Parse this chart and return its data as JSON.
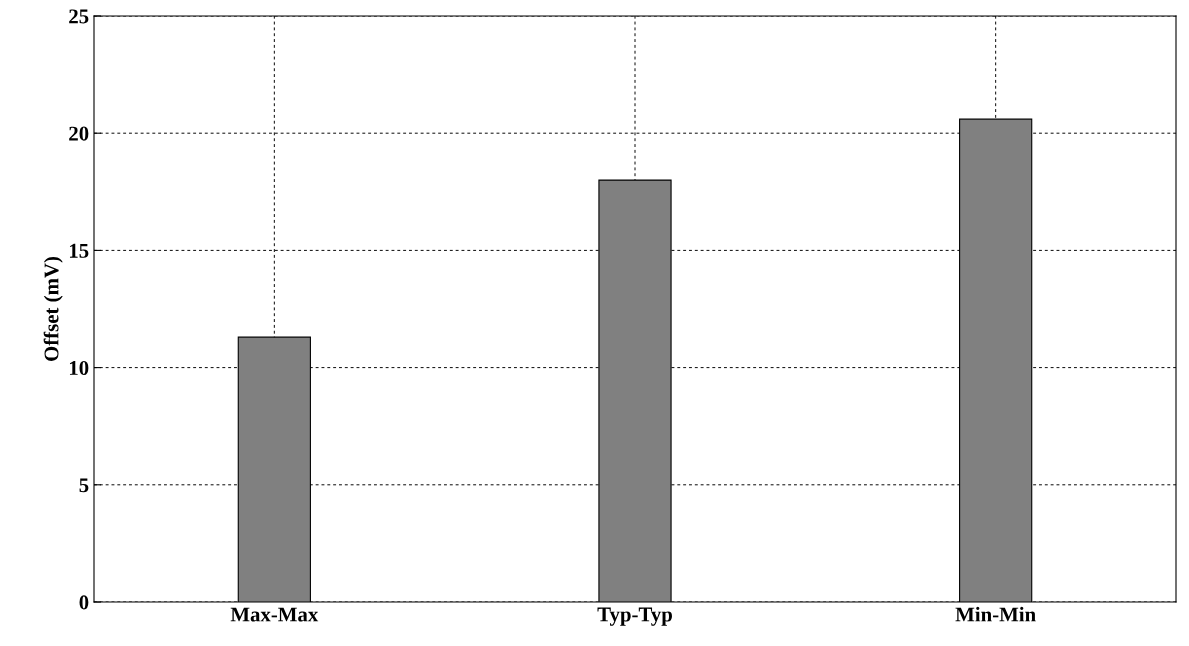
{
  "chart_data": {
    "type": "bar",
    "categories": [
      "Max-Max",
      "Typ-Typ",
      "Min-Min"
    ],
    "values": [
      11.3,
      18.0,
      20.6
    ],
    "color": "#808080",
    "ylabel": "Offset (mV)",
    "ylim": [
      0,
      25
    ],
    "yticks": [
      0,
      5,
      10,
      15,
      20,
      25
    ],
    "grid": true
  }
}
